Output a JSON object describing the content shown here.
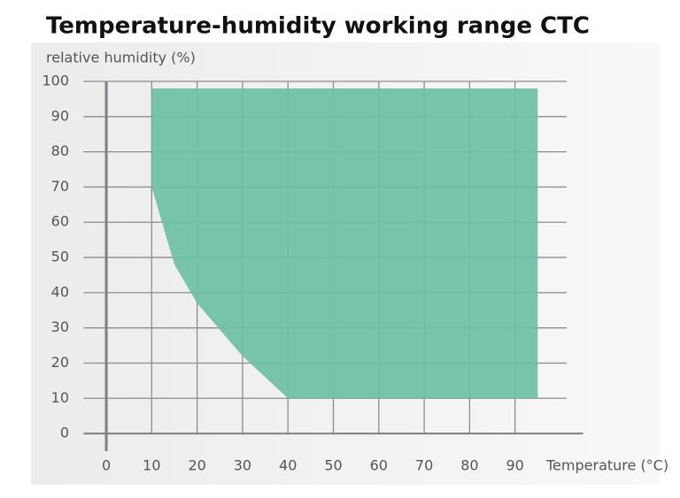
{
  "chart_data": {
    "type": "area",
    "title": "Temperature-humidity working range CTC",
    "y_label": "relative humidity (%)",
    "x_label": "Temperature (°C)",
    "x": [
      10,
      10,
      95,
      95,
      40,
      30,
      20,
      15
    ],
    "values": [
      70,
      98,
      98,
      10,
      10,
      22,
      37,
      48
    ],
    "color": "#6cbfa5",
    "xlim": [
      -5,
      105
    ],
    "xticks": [
      0,
      10,
      20,
      30,
      40,
      50,
      60,
      70,
      80,
      90
    ],
    "ylim": [
      -5,
      100
    ],
    "yticks": [
      0,
      10,
      20,
      30,
      40,
      50,
      60,
      70,
      80,
      90,
      100
    ],
    "grid": true
  }
}
